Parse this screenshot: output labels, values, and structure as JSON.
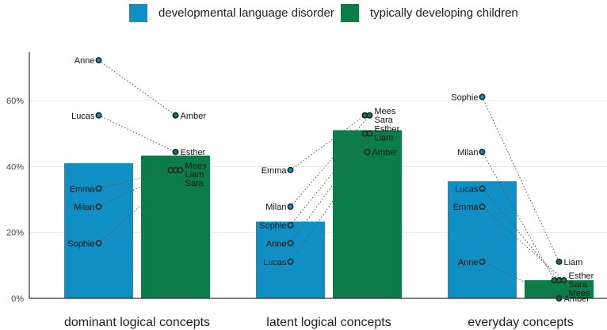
{
  "chart_data": {
    "type": "bar",
    "title": "",
    "xlabel": "",
    "ylabel": "",
    "ylim": [
      0,
      0.75
    ],
    "yticks": [
      0,
      0.2,
      0.4,
      0.6
    ],
    "ytick_labels": [
      "0%",
      "20%",
      "40%",
      "60%"
    ],
    "grid": true,
    "legend_position": "top",
    "categories": [
      "dominant logical concepts",
      "latent logical concepts",
      "everyday concepts"
    ],
    "series": [
      {
        "name": "developmental language disorder",
        "color": "#0f8fc3",
        "values": [
          0.41,
          0.233,
          0.355
        ],
        "points": [
          [
            {
              "name": "Anne",
              "value": 0.722
            },
            {
              "name": "Lucas",
              "value": 0.555
            },
            {
              "name": "Emma",
              "value": 0.333
            },
            {
              "name": "Milan",
              "value": 0.278
            },
            {
              "name": "Sophie",
              "value": 0.167
            }
          ],
          [
            {
              "name": "Emma",
              "value": 0.389
            },
            {
              "name": "Milan",
              "value": 0.278
            },
            {
              "name": "Sophie",
              "value": 0.222
            },
            {
              "name": "Anne",
              "value": 0.167
            },
            {
              "name": "Lucas",
              "value": 0.111
            }
          ],
          [
            {
              "name": "Sophie",
              "value": 0.611
            },
            {
              "name": "Milan",
              "value": 0.444
            },
            {
              "name": "Lucas",
              "value": 0.333
            },
            {
              "name": "Emma",
              "value": 0.278
            },
            {
              "name": "Anne",
              "value": 0.111
            }
          ]
        ]
      },
      {
        "name": "typically developing children",
        "color": "#0c7d48",
        "values": [
          0.433,
          0.51,
          0.055
        ],
        "points": [
          [
            {
              "name": "Amber",
              "value": 0.555
            },
            {
              "name": "Esther",
              "value": 0.444
            },
            {
              "name": "Mees",
              "value": 0.389
            },
            {
              "name": "Liam",
              "value": 0.389
            },
            {
              "name": "Sara",
              "value": 0.389
            }
          ],
          [
            {
              "name": "Mees",
              "value": 0.555
            },
            {
              "name": "Sara",
              "value": 0.555
            },
            {
              "name": "Esther",
              "value": 0.5
            },
            {
              "name": "Liam",
              "value": 0.5
            },
            {
              "name": "Amber",
              "value": 0.444
            }
          ],
          [
            {
              "name": "Liam",
              "value": 0.111
            },
            {
              "name": "Esther",
              "value": 0.055
            },
            {
              "name": "Sara",
              "value": 0.055
            },
            {
              "name": "Mees",
              "value": 0.055
            },
            {
              "name": "Amber",
              "value": 0.0
            }
          ]
        ]
      }
    ],
    "connections": [
      [
        [
          "Anne",
          "Amber"
        ],
        [
          "Lucas",
          "Esther"
        ],
        [
          "Emma",
          "Mees"
        ],
        [
          "Milan",
          "Liam"
        ],
        [
          "Sophie",
          "Sara"
        ]
      ],
      [
        [
          "Emma",
          "Mees"
        ],
        [
          "Milan",
          "Sara"
        ],
        [
          "Sophie",
          "Esther"
        ],
        [
          "Anne",
          "Liam"
        ],
        [
          "Lucas",
          "Amber"
        ]
      ],
      [
        [
          "Sophie",
          "Liam"
        ],
        [
          "Milan",
          "Esther"
        ],
        [
          "Lucas",
          "Sara"
        ],
        [
          "Emma",
          "Mees"
        ],
        [
          "Anne",
          "Amber"
        ]
      ]
    ]
  }
}
